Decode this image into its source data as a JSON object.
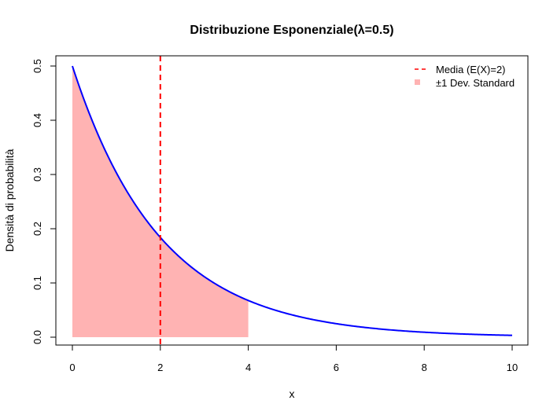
{
  "chart_data": {
    "type": "line",
    "title": "Distribuzione Esponenziale(λ=0.5)",
    "xlabel": "x",
    "ylabel": "Densità di probabilità",
    "xlim": [
      0,
      10
    ],
    "ylim": [
      0,
      0.5
    ],
    "x_ticks": [
      "0",
      "2",
      "4",
      "6",
      "8",
      "10"
    ],
    "y_ticks": [
      "0.0",
      "0.1",
      "0.2",
      "0.3",
      "0.4",
      "0.5"
    ],
    "grid": false,
    "legend_position": "top-right",
    "series": [
      {
        "kind": "line",
        "color": "#0000ff",
        "lambda": 0.5,
        "x": [
          0,
          0.5,
          1,
          1.5,
          2,
          2.5,
          3,
          3.5,
          4,
          4.5,
          5,
          5.5,
          6,
          6.5,
          7,
          7.5,
          8,
          8.5,
          9,
          9.5,
          10
        ],
        "y": [
          0.5,
          0.3894,
          0.3033,
          0.2362,
          0.1839,
          0.1433,
          0.1116,
          0.0869,
          0.0677,
          0.0527,
          0.041,
          0.032,
          0.0249,
          0.0194,
          0.0151,
          0.0118,
          0.0092,
          0.0071,
          0.0056,
          0.0043,
          0.0034
        ]
      }
    ],
    "shaded_region": {
      "name": "±1 Dev. Standard",
      "color": "#ffb3b3",
      "x_from": 0,
      "x_to": 4
    },
    "mean_line": {
      "name": "Media (E(X)=2)",
      "x": 2,
      "color": "#ff0000",
      "style": "dashed"
    }
  }
}
